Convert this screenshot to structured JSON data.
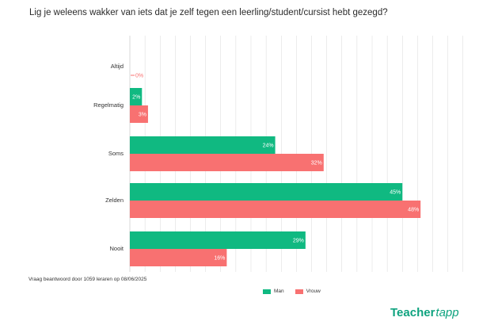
{
  "title": "Lig je weleens wakker van iets dat je zelf tegen een leerling/student/cursist hebt gezegd?",
  "footnote": "Vraag beantwoord door 1059 leraren op 08/06/2025",
  "legend": {
    "man": "Man",
    "vrouw": "Vrouw"
  },
  "logo": {
    "part1": "Teacher",
    "part2": "tapp"
  },
  "colors": {
    "man": "#10b981",
    "vrouw": "#f87171",
    "grid": "#d9d9d9"
  },
  "chart_data": {
    "type": "bar",
    "orientation": "horizontal",
    "categories": [
      "Altijd",
      "Regelmatig",
      "Soms",
      "Zelden",
      "Nooit"
    ],
    "series": [
      {
        "name": "Man",
        "values": [
          null,
          2,
          24,
          45,
          29
        ],
        "labels": [
          "",
          "2%",
          "24%",
          "45%",
          "29%"
        ]
      },
      {
        "name": "Vrouw",
        "values": [
          0,
          3,
          32,
          48,
          16
        ],
        "labels": [
          "0%",
          "3%",
          "32%",
          "48%",
          "16%"
        ]
      }
    ],
    "xlim": [
      0,
      55
    ],
    "grid": true,
    "legend_position": "bottom-center"
  }
}
